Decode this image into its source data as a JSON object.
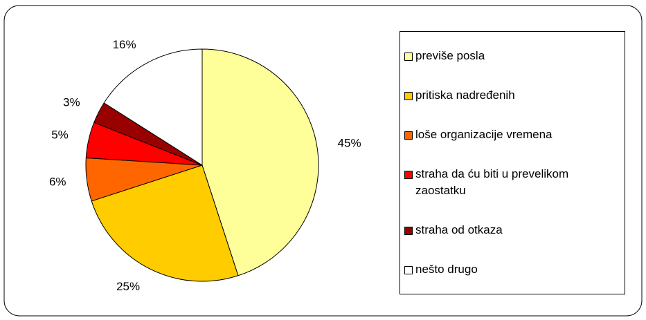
{
  "chart_data": {
    "type": "pie",
    "categories": [
      "previše posla",
      "pritiska nadređenih",
      "loše organizacije vremena",
      "straha da ću biti u prevelikom zaostatku",
      "straha od otkaza",
      "nešto drugo"
    ],
    "values": [
      45,
      25,
      6,
      5,
      3,
      16
    ],
    "value_labels": [
      "45%",
      "25%",
      "6%",
      "5%",
      "3%",
      "16%"
    ],
    "colors": [
      "#FFFF99",
      "#FFCC00",
      "#FF6600",
      "#FF0000",
      "#990000",
      "#FFFFFF"
    ],
    "legend": "right"
  }
}
